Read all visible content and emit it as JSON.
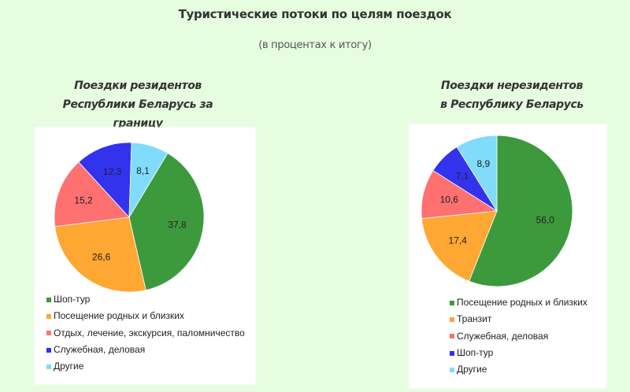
{
  "header": {
    "title": "Туристические потоки по целям поездок",
    "subtitle": "(в процентах к итогу)"
  },
  "colors": {
    "background": "#e6fde0",
    "green": "#3c9a3c",
    "orange": "#ffa733",
    "red": "#ff7070",
    "blue": "#3333ee",
    "light_blue": "#80dcfa"
  },
  "chart_data": [
    {
      "type": "pie",
      "title": "Поездки резидентов Республики Беларусь за границу",
      "title_lines": [
        "Поездки резидентов",
        "Республики Беларусь за границу"
      ],
      "unit": "%",
      "start_angle_deg": 31,
      "legend_position": "bottom",
      "slices": [
        {
          "label": "Шоп-тур",
          "value": 37.8,
          "display": "37,8",
          "color": "#3c9a3c"
        },
        {
          "label": "Посещение родных и близких",
          "value": 26.6,
          "display": "26,6",
          "color": "#ffa733"
        },
        {
          "label": "Отдых,  лечение, экскурсия, паломничество",
          "value": 15.2,
          "display": "15,2",
          "color": "#ff7070"
        },
        {
          "label": "Служебная, деловая",
          "value": 12.3,
          "display": "12,3",
          "color": "#3333ee"
        },
        {
          "label": "Другие",
          "value": 8.1,
          "display": "8,1",
          "color": "#80dcfa"
        }
      ]
    },
    {
      "type": "pie",
      "title": "Поездки нерезидентов в Республику Беларусь",
      "title_lines": [
        "Поездки нерезидентов",
        "в Республику Беларусь"
      ],
      "unit": "%",
      "start_angle_deg": 0,
      "legend_position": "bottom",
      "slices": [
        {
          "label": "Посещение родных и близких",
          "value": 56.0,
          "display": "56,0",
          "color": "#3c9a3c"
        },
        {
          "label": "Транзит",
          "value": 17.4,
          "display": "17,4",
          "color": "#ffa733"
        },
        {
          "label": "Служебная, деловая",
          "value": 10.6,
          "display": "10,6",
          "color": "#ff7070"
        },
        {
          "label": "Шоп-тур",
          "value": 7.1,
          "display": "7,1",
          "color": "#3333ee"
        },
        {
          "label": "Другие",
          "value": 8.9,
          "display": "8,9",
          "color": "#80dcfa"
        }
      ]
    }
  ]
}
